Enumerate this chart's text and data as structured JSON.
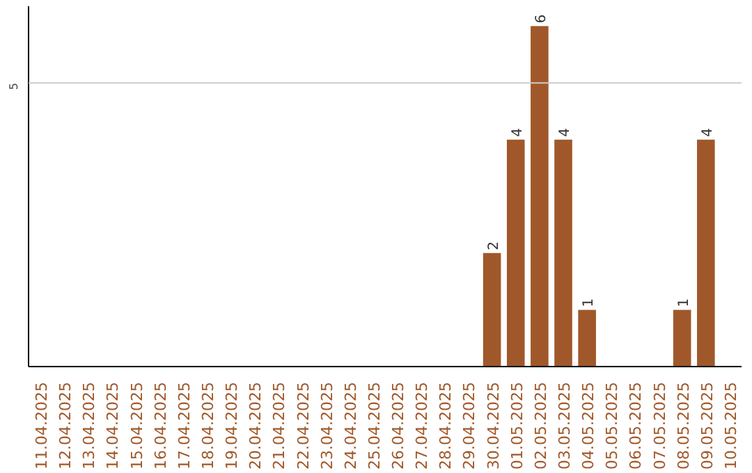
{
  "chart_data": {
    "type": "bar",
    "categories": [
      "11.04.2025",
      "12.04.2025",
      "13.04.2025",
      "14.04.2025",
      "15.04.2025",
      "16.04.2025",
      "17.04.2025",
      "18.04.2025",
      "19.04.2025",
      "20.04.2025",
      "21.04.2025",
      "22.04.2025",
      "23.04.2025",
      "24.04.2025",
      "25.04.2025",
      "26.04.2025",
      "27.04.2025",
      "28.04.2025",
      "29.04.2025",
      "30.04.2025",
      "01.05.2025",
      "02.05.2025",
      "03.05.2025",
      "04.05.2025",
      "05.05.2025",
      "06.05.2025",
      "07.05.2025",
      "08.05.2025",
      "09.05.2025",
      "10.05.2025"
    ],
    "values": [
      null,
      null,
      null,
      null,
      null,
      null,
      null,
      null,
      null,
      null,
      null,
      null,
      null,
      null,
      null,
      null,
      null,
      null,
      null,
      2,
      4,
      6,
      4,
      1,
      null,
      null,
      null,
      1,
      4,
      null
    ],
    "value_labels": [
      null,
      null,
      null,
      null,
      null,
      null,
      null,
      null,
      null,
      null,
      null,
      null,
      null,
      null,
      null,
      null,
      null,
      null,
      null,
      "2",
      "4",
      "6",
      "4",
      "1",
      null,
      null,
      null,
      "1",
      "4",
      null
    ],
    "color": "#a0582a",
    "ylim": [
      0,
      6.35
    ],
    "ref_lines": [
      {
        "axis": "y",
        "value": 5,
        "label": "5",
        "color": "#cccccc"
      }
    ],
    "grid": false,
    "legend": false
  }
}
